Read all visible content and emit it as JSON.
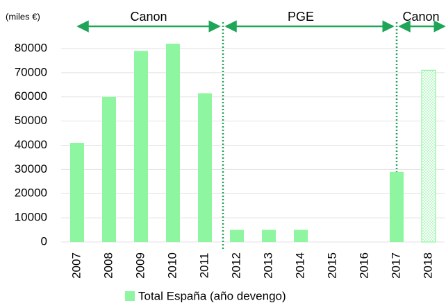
{
  "chart_data": {
    "type": "bar",
    "y_label": "(miles €)",
    "categories": [
      "2007",
      "2008",
      "2009",
      "2010",
      "2011",
      "2012",
      "2013",
      "2014",
      "2015",
      "2016",
      "2017",
      "2018"
    ],
    "series": [
      {
        "name": "Total España (año devengo)",
        "color": "#8ef5a0",
        "values": [
          41000,
          60000,
          79000,
          82000,
          61500,
          5000,
          5000,
          5000,
          null,
          null,
          29000,
          71000
        ],
        "styles": [
          "solid",
          "solid",
          "solid",
          "solid",
          "solid",
          "solid",
          "solid",
          "solid",
          "solid",
          "solid",
          "solid",
          "dotted"
        ]
      }
    ],
    "ylim": [
      0,
      80000
    ],
    "yticks": [
      0,
      10000,
      20000,
      30000,
      40000,
      50000,
      60000,
      70000,
      80000
    ],
    "grid": true,
    "periods": [
      "Canon",
      "PGE",
      "Canon"
    ]
  }
}
